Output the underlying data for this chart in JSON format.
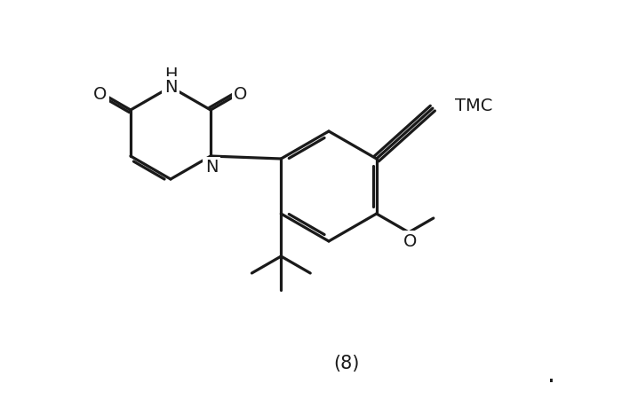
{
  "bg_color": "#ffffff",
  "line_color": "#1a1a1a",
  "line_width": 2.3,
  "font_size": 14,
  "label_8": "(8)",
  "label_dot": ".",
  "label_tmc": "TMC",
  "label_n": "N",
  "label_h": "H",
  "label_o": "O",
  "label_ome": "O"
}
